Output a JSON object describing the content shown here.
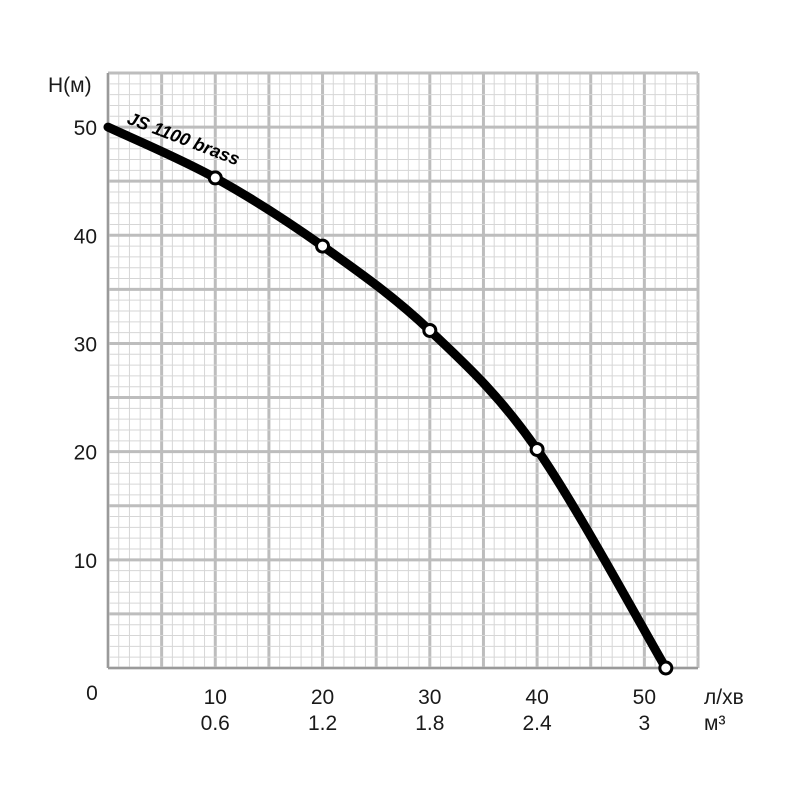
{
  "chart_data": {
    "type": "line",
    "title": "",
    "ylabel": "H(м)",
    "xlabel": "л/хв",
    "xlabel2": "м³",
    "xlim": [
      0,
      55
    ],
    "ylim": [
      0,
      55
    ],
    "origin_label": "0",
    "x_ticks": [
      {
        "value": 10,
        "label": "10",
        "label2": "0.6"
      },
      {
        "value": 20,
        "label": "20",
        "label2": "1.2"
      },
      {
        "value": 30,
        "label": "30",
        "label2": "1.8"
      },
      {
        "value": 40,
        "label": "40",
        "label2": "2.4"
      },
      {
        "value": 50,
        "label": "50",
        "label2": "3"
      }
    ],
    "y_ticks": [
      {
        "value": 10,
        "label": "10"
      },
      {
        "value": 20,
        "label": "20"
      },
      {
        "value": 30,
        "label": "30"
      },
      {
        "value": 40,
        "label": "40"
      },
      {
        "value": 50,
        "label": "50"
      }
    ],
    "grid": true,
    "series": [
      {
        "name": "JS 1100 brass",
        "color": "#000000",
        "x": [
          0,
          10,
          20,
          30,
          40,
          52
        ],
        "y": [
          50,
          45.3,
          39,
          31.2,
          20.2,
          0
        ],
        "marker_x": [
          10,
          20,
          30,
          40,
          52
        ],
        "marker_y": [
          45.3,
          39,
          31.2,
          20.2,
          0
        ]
      }
    ]
  }
}
